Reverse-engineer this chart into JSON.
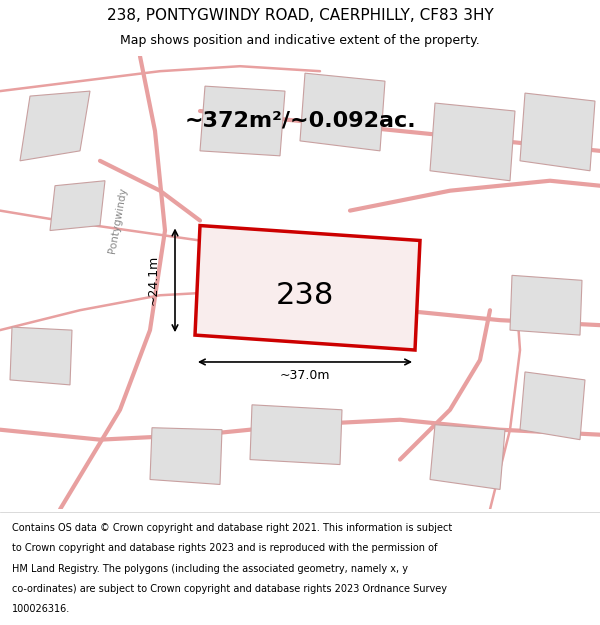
{
  "title": "238, PONTYGWINDY ROAD, CAERPHILLY, CF83 3HY",
  "subtitle": "Map shows position and indicative extent of the property.",
  "area_text": "~372m²/~0.092ac.",
  "property_number": "238",
  "dim_horizontal": "~37.0m",
  "dim_vertical": "~24.1m",
  "road_label": "Pontygwindy",
  "footer_lines": [
    "Contains OS data © Crown copyright and database right 2021. This information is subject",
    "to Crown copyright and database rights 2023 and is reproduced with the permission of",
    "HM Land Registry. The polygons (including the associated geometry, namely x, y",
    "co-ordinates) are subject to Crown copyright and database rights 2023 Ordnance Survey",
    "100026316."
  ],
  "map_bg": "#f0f0f0",
  "property_fill": "#f9eded",
  "property_edge": "#cc0000",
  "road_color": "#e8a0a0",
  "building_color": "#e0e0e0",
  "building_edge": "#c8a0a0",
  "title_fontsize": 11,
  "subtitle_fontsize": 9,
  "area_fontsize": 16,
  "number_fontsize": 22,
  "dim_fontsize": 9,
  "footer_fontsize": 7
}
